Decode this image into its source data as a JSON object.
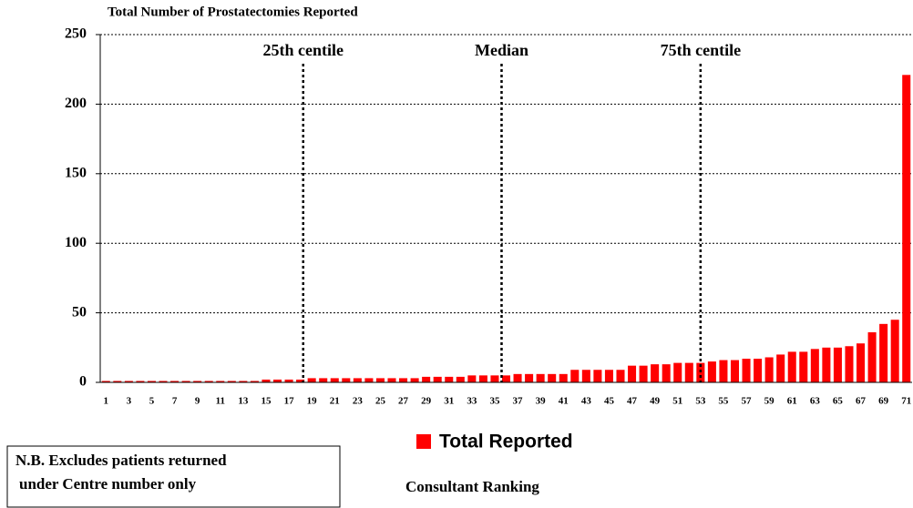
{
  "chart_data": {
    "type": "bar",
    "y_axis_title": "Total  Number of Prostatectomies Reported",
    "x_axis_title": "Consultant Ranking",
    "note": [
      "N.B. Excludes patients returned",
      "under Centre number only"
    ],
    "categories": [
      "1",
      null,
      "3",
      null,
      "5",
      null,
      "7",
      null,
      "9",
      null,
      "11",
      null,
      "13",
      null,
      "15",
      null,
      "17",
      null,
      "19",
      null,
      "21",
      null,
      "23",
      null,
      "25",
      null,
      "27",
      null,
      "29",
      null,
      "31",
      null,
      "33",
      null,
      "35",
      null,
      "37",
      null,
      "39",
      null,
      "41",
      null,
      "43",
      null,
      "45",
      null,
      "47",
      null,
      "49",
      null,
      "51",
      null,
      "53",
      null,
      "55",
      null,
      "57",
      null,
      "59",
      null,
      "61",
      null,
      "63",
      null,
      "65",
      null,
      "67",
      null,
      "69",
      null,
      "71"
    ],
    "series": [
      {
        "name": "Total Reported",
        "color": "#ff0000",
        "values": [
          1,
          1,
          1,
          1,
          1,
          1,
          1,
          1,
          1,
          1,
          1,
          1,
          1,
          1,
          2,
          2,
          2,
          2,
          3,
          3,
          3,
          3,
          3,
          3,
          3,
          3,
          3,
          3,
          4,
          4,
          4,
          4,
          5,
          5,
          5,
          5,
          6,
          6,
          6,
          6,
          6,
          9,
          9,
          9,
          9,
          9,
          12,
          12,
          13,
          13,
          14,
          14,
          14,
          15,
          16,
          16,
          17,
          17,
          18,
          20,
          22,
          22,
          24,
          25,
          25,
          26,
          28,
          36,
          42,
          45,
          221
        ]
      }
    ],
    "ylim": [
      0,
      250
    ],
    "yticks": [
      0,
      50,
      100,
      150,
      200,
      250
    ],
    "grid": true,
    "legend": "bottom",
    "annotations": [
      {
        "label": "25th centile",
        "x": 18.25
      },
      {
        "label": "Median",
        "x": 35.6
      },
      {
        "label": "75th centile",
        "x": 53
      }
    ]
  }
}
